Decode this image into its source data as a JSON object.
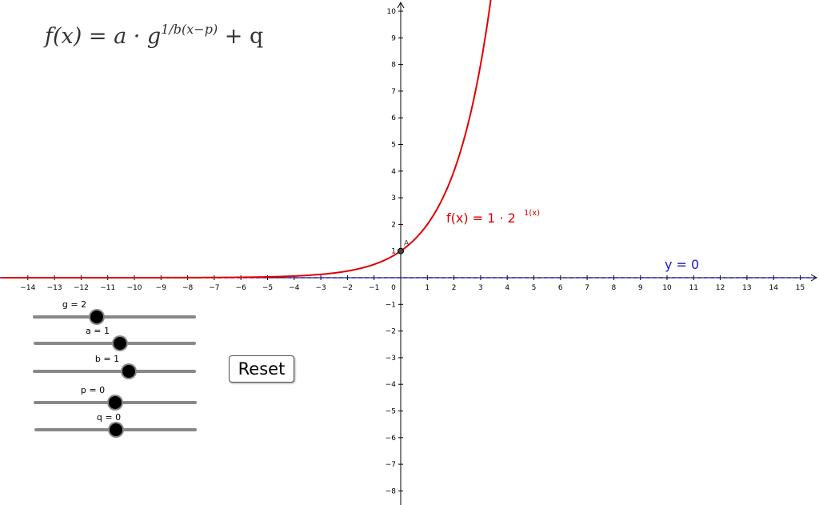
{
  "formula": {
    "lhs": "f(x) = a · g",
    "exponent": "1/b(x−p)",
    "rhs": " + q"
  },
  "sliders": [
    {
      "label": "g = 2",
      "value": 2,
      "min": -5,
      "max": 10
    },
    {
      "label": "a = 1",
      "value": 1,
      "min": -5,
      "max": 5
    },
    {
      "label": "b = 1",
      "value": 1,
      "min": -5,
      "max": 5
    },
    {
      "label": "p = 0",
      "value": 0,
      "min": -5,
      "max": 5
    },
    {
      "label": "q = 0",
      "value": 0,
      "min": -5,
      "max": 5
    }
  ],
  "reset_label": "Reset",
  "graph": {
    "x_range": [
      -15,
      15.6
    ],
    "y_range": [
      -8.4,
      10.3
    ],
    "x_ticks": [
      -14,
      -13,
      -12,
      -11,
      -10,
      -9,
      -8,
      -7,
      -6,
      -5,
      -4,
      -3,
      -2,
      -1,
      0,
      1,
      2,
      3,
      4,
      5,
      6,
      7,
      8,
      9,
      10,
      11,
      12,
      13,
      14,
      15
    ],
    "y_ticks": [
      -8,
      -7,
      -6,
      -5,
      -4,
      -3,
      -2,
      -1,
      1,
      2,
      3,
      4,
      5,
      6,
      7,
      8,
      9,
      10
    ],
    "function_label": "f(x) = 1 · 2",
    "function_exponent": "1(x)",
    "function_color": "#e00000",
    "asymptote_label": "y = 0",
    "asymptote_color": "#1a1acc",
    "point_label": "A",
    "point": {
      "x": 0,
      "y": 1
    }
  }
}
